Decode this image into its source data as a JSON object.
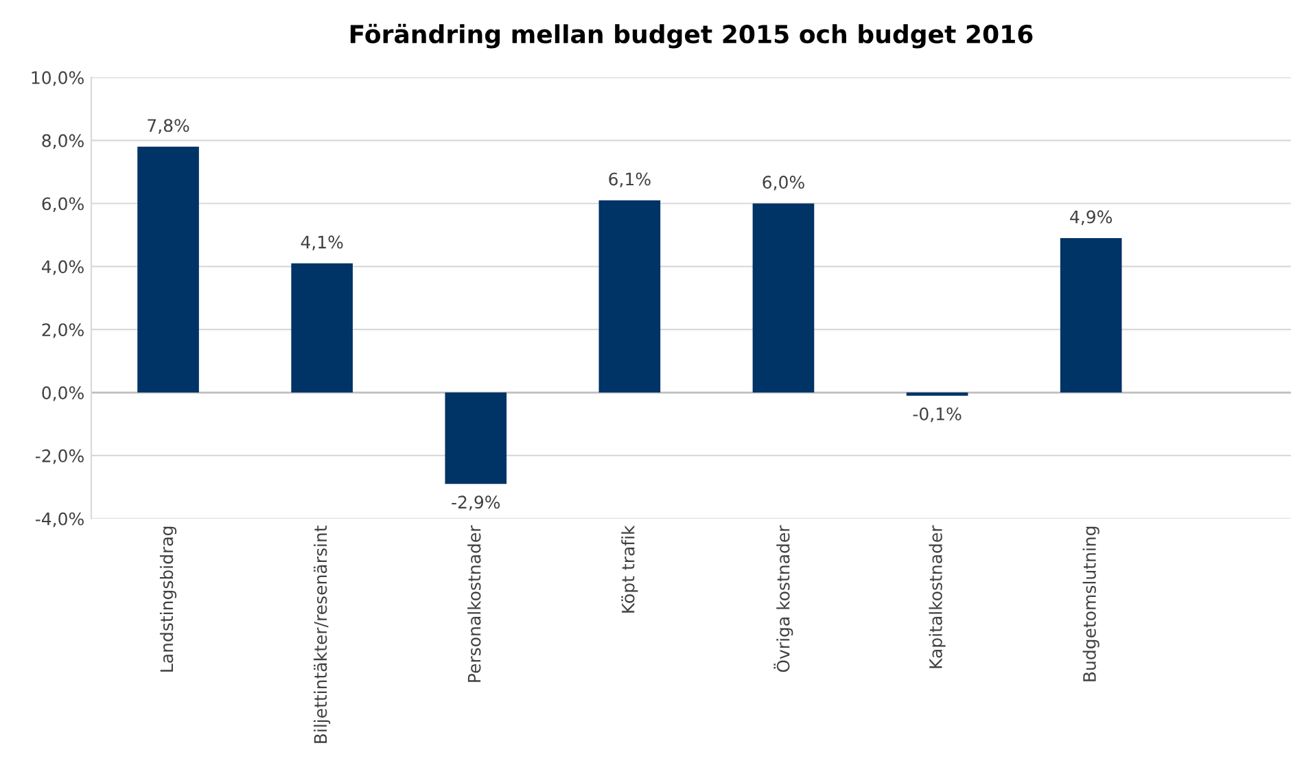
{
  "chart_data": {
    "type": "bar",
    "title": "Förändring mellan budget 2015 och budget 2016",
    "categories": [
      "Landstingsbidrag",
      "Biljettintäkter/resenärsint",
      "Personalkostnader",
      "Köpt trafik",
      "Övriga kostnader",
      "Kapitalkostnader",
      "Budgetomslutning"
    ],
    "values": [
      7.8,
      4.1,
      -2.9,
      6.1,
      6.0,
      -0.1,
      4.9
    ],
    "value_labels": [
      "7,8%",
      "4,1%",
      "-2,9%",
      "6,1%",
      "6,0%",
      "-0,1%",
      "4,9%"
    ],
    "color": "#003366",
    "ylim": [
      -4,
      10
    ],
    "yticks": [
      {
        "value": -4,
        "label": "-4,0%"
      },
      {
        "value": -2,
        "label": "-2,0%"
      },
      {
        "value": 0,
        "label": "0,0%"
      },
      {
        "value": 2,
        "label": "2,0%"
      },
      {
        "value": 4,
        "label": "4,0%"
      },
      {
        "value": 6,
        "label": "6,0%"
      },
      {
        "value": 8,
        "label": "8,0%"
      },
      {
        "value": 10,
        "label": "10,0%"
      }
    ],
    "grid": "y"
  }
}
